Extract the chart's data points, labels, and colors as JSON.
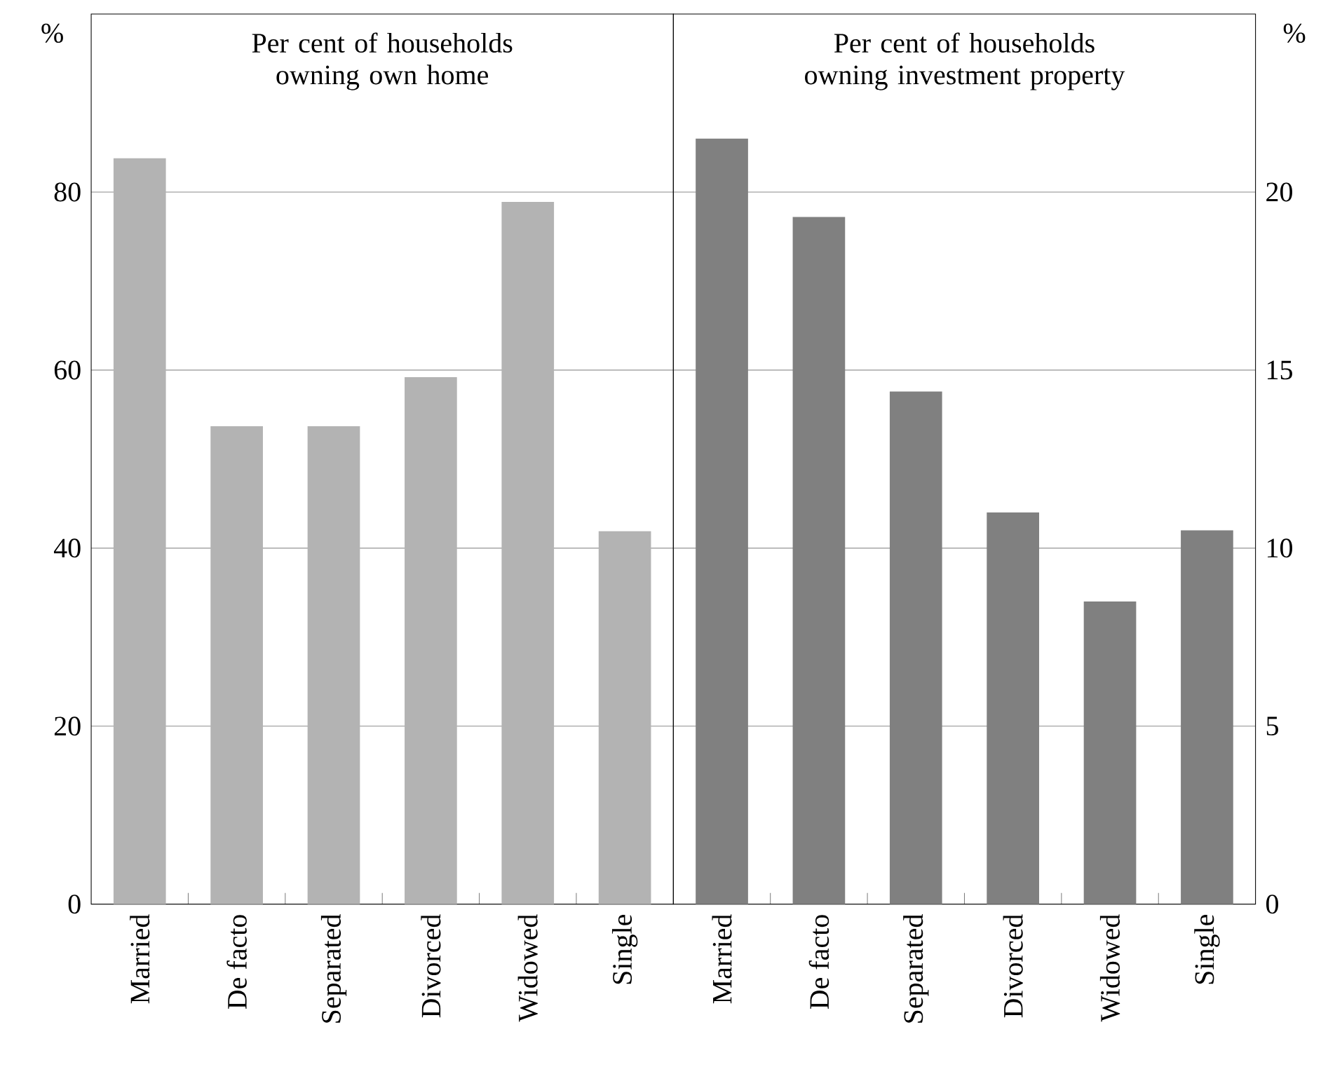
{
  "chart_data": [
    {
      "type": "bar",
      "title": "Per cent of households owning own home",
      "ylabel": "%",
      "categories": [
        "Married",
        "De facto",
        "Separated",
        "Divorced",
        "Widowed",
        "Single"
      ],
      "values": [
        83.8,
        53.7,
        53.7,
        59.2,
        78.9,
        41.9
      ],
      "color": "#b3b3b3",
      "ylim": [
        0,
        100
      ],
      "yticks": [
        0,
        20,
        40,
        60,
        80
      ],
      "grid": "y"
    },
    {
      "type": "bar",
      "title": "Per cent of households owning investment property",
      "ylabel": "%",
      "categories": [
        "Married",
        "De facto",
        "Separated",
        "Divorced",
        "Widowed",
        "Single"
      ],
      "values": [
        21.5,
        19.3,
        14.4,
        11.0,
        8.5,
        10.5
      ],
      "color": "#808080",
      "ylim": [
        0,
        25
      ],
      "yticks": [
        0,
        5,
        10,
        15,
        20
      ],
      "grid": "y"
    }
  ]
}
